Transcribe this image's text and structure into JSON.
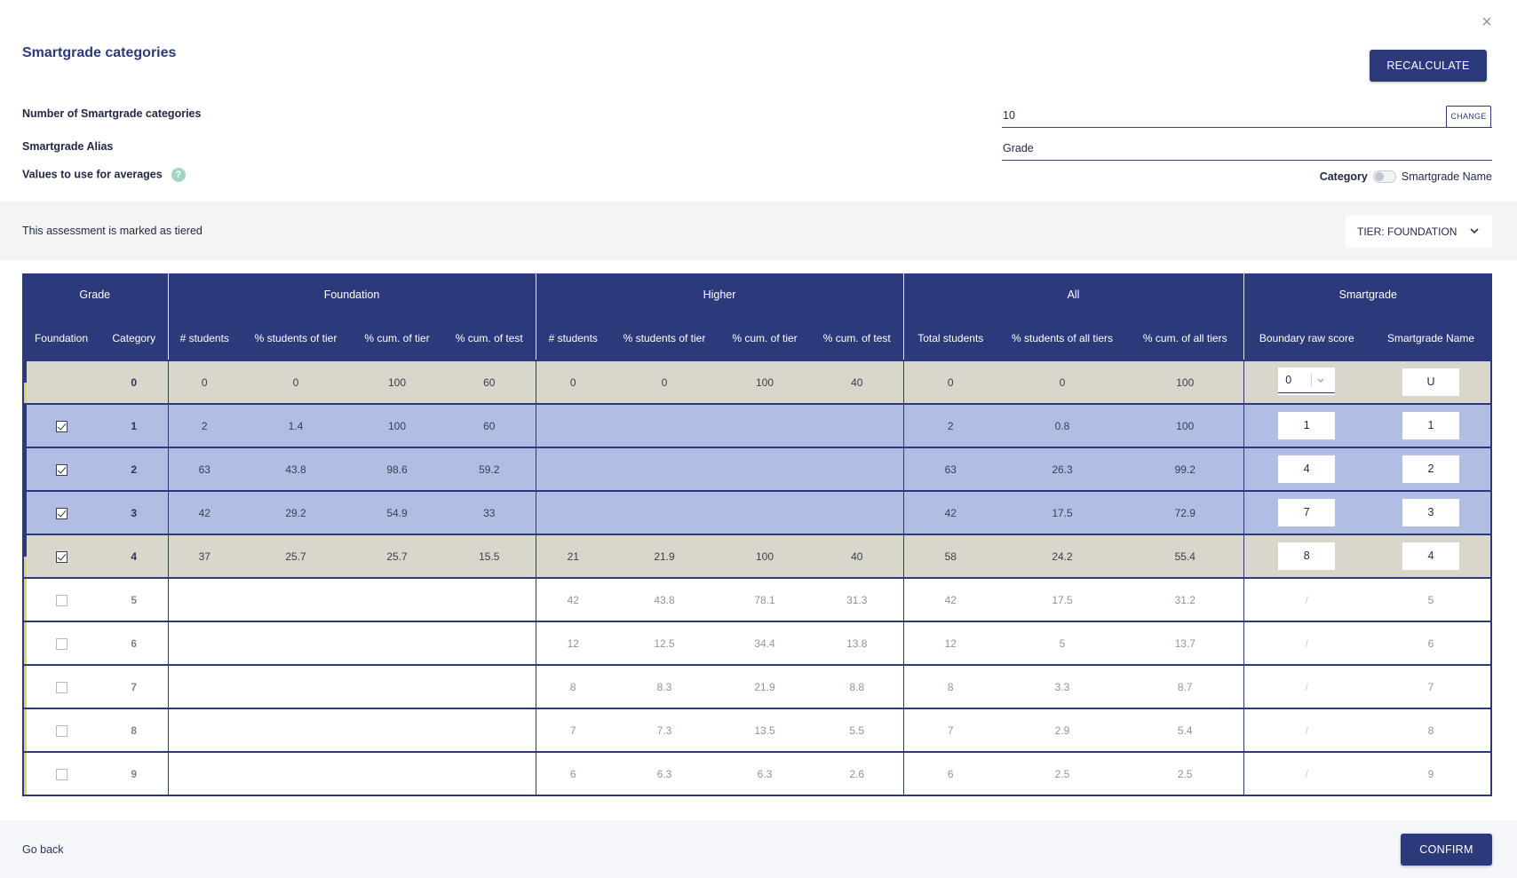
{
  "dialog": {
    "title": "Smartgrade categories",
    "close_symbol": "×",
    "recalculate_label": "RECALCULATE"
  },
  "form": {
    "num_categories_label": "Number of Smartgrade categories",
    "num_categories_value": "10",
    "change_label": "CHANGE",
    "alias_label": "Smartgrade Alias",
    "alias_value": "Grade",
    "averages_label": "Values to use for averages",
    "help_symbol": "?",
    "toggle_left": "Category",
    "toggle_right": "Smartgrade Name",
    "toggle_on": false
  },
  "tier": {
    "notice": "This assessment is marked as tiered",
    "select_label": "TIER: FOUNDATION"
  },
  "table": {
    "groups": [
      "Grade",
      "Foundation",
      "Higher",
      "All",
      "Smartgrade"
    ],
    "columns": [
      "Foundation",
      "Category",
      "# students",
      "% students of tier",
      "% cum. of tier",
      "% cum. of test",
      "# students",
      "% students of tier",
      "% cum. of tier",
      "% cum. of test",
      "Total students",
      "% students of all tiers",
      "% cum. of all tiers",
      "Boundary raw score",
      "Smartgrade Name"
    ],
    "rows": [
      {
        "state": "tan",
        "checkbox": null,
        "category": "0",
        "foundation": [
          "0",
          "0",
          "100",
          "60"
        ],
        "higher": [
          "0",
          "0",
          "100",
          "40"
        ],
        "all": [
          "0",
          "0",
          "100"
        ],
        "boundary": "0",
        "boundary_type": "select",
        "name": "U",
        "name_editable": true
      },
      {
        "state": "blue",
        "checkbox": true,
        "category": "1",
        "foundation": [
          "2",
          "1.4",
          "100",
          "60"
        ],
        "higher": [
          "",
          "",
          "",
          ""
        ],
        "all": [
          "2",
          "0.8",
          "100"
        ],
        "boundary": "1",
        "boundary_type": "input",
        "name": "1",
        "name_editable": true
      },
      {
        "state": "blue",
        "checkbox": true,
        "category": "2",
        "foundation": [
          "63",
          "43.8",
          "98.6",
          "59.2"
        ],
        "higher": [
          "",
          "",
          "",
          ""
        ],
        "all": [
          "63",
          "26.3",
          "99.2"
        ],
        "boundary": "4",
        "boundary_type": "input",
        "name": "2",
        "name_editable": true
      },
      {
        "state": "blue",
        "checkbox": true,
        "category": "3",
        "foundation": [
          "42",
          "29.2",
          "54.9",
          "33"
        ],
        "higher": [
          "",
          "",
          "",
          ""
        ],
        "all": [
          "42",
          "17.5",
          "72.9"
        ],
        "boundary": "7",
        "boundary_type": "input",
        "name": "3",
        "name_editable": true
      },
      {
        "state": "tan",
        "checkbox": true,
        "category": "4",
        "foundation": [
          "37",
          "25.7",
          "25.7",
          "15.5"
        ],
        "higher": [
          "21",
          "21.9",
          "100",
          "40"
        ],
        "all": [
          "58",
          "24.2",
          "55.4"
        ],
        "boundary": "8",
        "boundary_type": "input",
        "name": "4",
        "name_editable": true
      },
      {
        "state": "white",
        "checkbox": false,
        "category": "5",
        "foundation": [
          "",
          "",
          "",
          ""
        ],
        "higher": [
          "42",
          "43.8",
          "78.1",
          "31.3"
        ],
        "all": [
          "42",
          "17.5",
          "31.2"
        ],
        "boundary": "/",
        "boundary_type": "text",
        "name": "5",
        "name_editable": false
      },
      {
        "state": "white",
        "checkbox": false,
        "category": "6",
        "foundation": [
          "",
          "",
          "",
          ""
        ],
        "higher": [
          "12",
          "12.5",
          "34.4",
          "13.8"
        ],
        "all": [
          "12",
          "5",
          "13.7"
        ],
        "boundary": "/",
        "boundary_type": "text",
        "name": "6",
        "name_editable": false
      },
      {
        "state": "white",
        "checkbox": false,
        "category": "7",
        "foundation": [
          "",
          "",
          "",
          ""
        ],
        "higher": [
          "8",
          "8.3",
          "21.9",
          "8.8"
        ],
        "all": [
          "8",
          "3.3",
          "8.7"
        ],
        "boundary": "/",
        "boundary_type": "text",
        "name": "7",
        "name_editable": false
      },
      {
        "state": "white",
        "checkbox": false,
        "category": "8",
        "foundation": [
          "",
          "",
          "",
          ""
        ],
        "higher": [
          "7",
          "7.3",
          "13.5",
          "5.5"
        ],
        "all": [
          "7",
          "2.9",
          "5.4"
        ],
        "boundary": "/",
        "boundary_type": "text",
        "name": "8",
        "name_editable": false
      },
      {
        "state": "white",
        "checkbox": false,
        "category": "9",
        "foundation": [
          "",
          "",
          "",
          ""
        ],
        "higher": [
          "6",
          "6.3",
          "6.3",
          "2.6"
        ],
        "all": [
          "6",
          "2.5",
          "2.5"
        ],
        "boundary": "/",
        "boundary_type": "text",
        "name": "9",
        "name_editable": false
      }
    ]
  },
  "footer": {
    "go_back_label": "Go back",
    "confirm_label": "CONFIRM"
  },
  "colors": {
    "primary": "#2c3a7c",
    "row_tan": "#d9d6cc",
    "row_blue": "#b1bde3",
    "accent_yellow": "#e6d55a",
    "help_green": "#9ed6c0"
  }
}
